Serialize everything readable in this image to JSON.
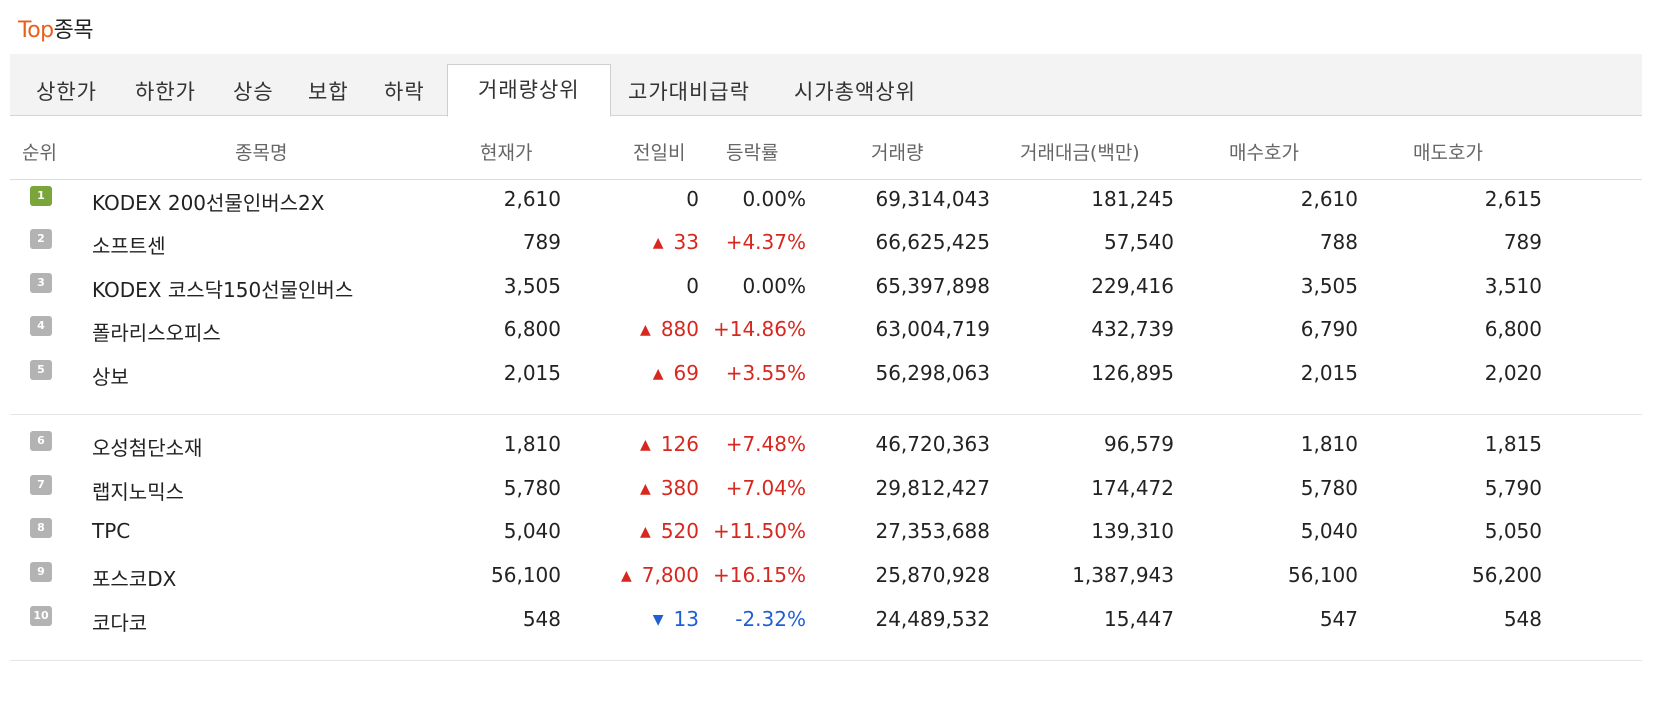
{
  "header": {
    "title_accent": "Top",
    "title_rest": "종목"
  },
  "tabs": [
    {
      "label": "상한가"
    },
    {
      "label": "하한가"
    },
    {
      "label": "상승"
    },
    {
      "label": "보합"
    },
    {
      "label": "하락"
    },
    {
      "label": "거래량상위"
    },
    {
      "label": "고가대비급락"
    },
    {
      "label": "시가총액상위"
    }
  ],
  "active_tab": "거래량상위",
  "columns": {
    "rank": "순위",
    "name": "종목명",
    "price": "현재가",
    "change": "전일비",
    "rate": "등락률",
    "volume": "거래량",
    "amount": "거래대금(백만)",
    "bid": "매수호가",
    "ask": "매도호가"
  },
  "colors": {
    "accent": "#e8601a",
    "up": "#d6281f",
    "down": "#1f5fd6",
    "rank_first": "#7aa53a",
    "rank_other": "#b3b3b3"
  },
  "rows": [
    {
      "rank": "1",
      "name": "KODEX 200선물인버스2X",
      "price": "2,610",
      "dir": "flat",
      "change": "0",
      "rate": "0.00%",
      "volume": "69,314,043",
      "amount": "181,245",
      "bid": "2,610",
      "ask": "2,615"
    },
    {
      "rank": "2",
      "name": "소프트센",
      "price": "789",
      "dir": "up",
      "change": "33",
      "rate": "+4.37%",
      "volume": "66,625,425",
      "amount": "57,540",
      "bid": "788",
      "ask": "789"
    },
    {
      "rank": "3",
      "name": "KODEX 코스닥150선물인버스",
      "price": "3,505",
      "dir": "flat",
      "change": "0",
      "rate": "0.00%",
      "volume": "65,397,898",
      "amount": "229,416",
      "bid": "3,505",
      "ask": "3,510"
    },
    {
      "rank": "4",
      "name": "폴라리스오피스",
      "price": "6,800",
      "dir": "up",
      "change": "880",
      "rate": "+14.86%",
      "volume": "63,004,719",
      "amount": "432,739",
      "bid": "6,790",
      "ask": "6,800"
    },
    {
      "rank": "5",
      "name": "상보",
      "price": "2,015",
      "dir": "up",
      "change": "69",
      "rate": "+3.55%",
      "volume": "56,298,063",
      "amount": "126,895",
      "bid": "2,015",
      "ask": "2,020"
    },
    {
      "rank": "6",
      "name": "오성첨단소재",
      "price": "1,810",
      "dir": "up",
      "change": "126",
      "rate": "+7.48%",
      "volume": "46,720,363",
      "amount": "96,579",
      "bid": "1,810",
      "ask": "1,815"
    },
    {
      "rank": "7",
      "name": "랩지노믹스",
      "price": "5,780",
      "dir": "up",
      "change": "380",
      "rate": "+7.04%",
      "volume": "29,812,427",
      "amount": "174,472",
      "bid": "5,780",
      "ask": "5,790"
    },
    {
      "rank": "8",
      "name": "TPC",
      "price": "5,040",
      "dir": "up",
      "change": "520",
      "rate": "+11.50%",
      "volume": "27,353,688",
      "amount": "139,310",
      "bid": "5,040",
      "ask": "5,050"
    },
    {
      "rank": "9",
      "name": "포스코DX",
      "price": "56,100",
      "dir": "up",
      "change": "7,800",
      "rate": "+16.15%",
      "volume": "25,870,928",
      "amount": "1,387,943",
      "bid": "56,100",
      "ask": "56,200"
    },
    {
      "rank": "10",
      "name": "코다코",
      "price": "548",
      "dir": "down",
      "change": "13",
      "rate": "-2.32%",
      "volume": "24,489,532",
      "amount": "15,447",
      "bid": "547",
      "ask": "548"
    }
  ]
}
